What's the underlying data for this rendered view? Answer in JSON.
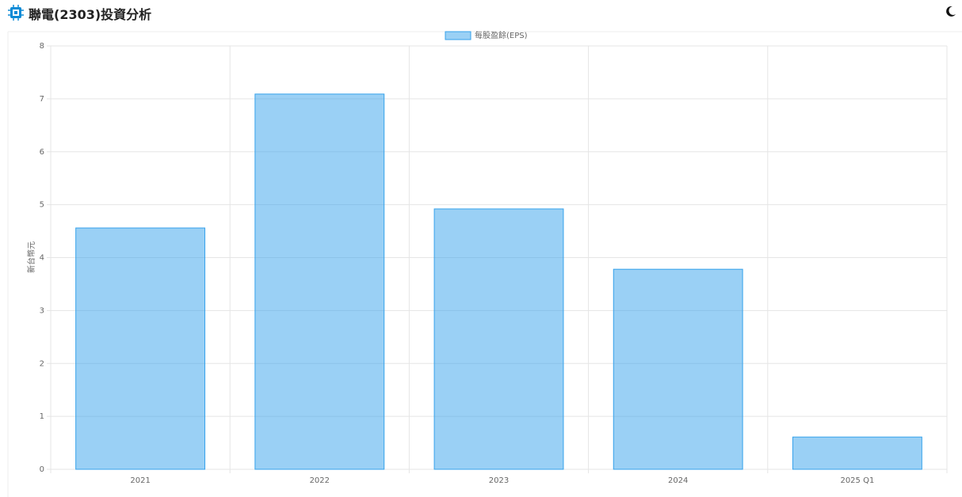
{
  "header": {
    "title": "聯電(2303)投資分析"
  },
  "chart_data": {
    "type": "bar",
    "y_label": "新台幣元",
    "categories": [
      "2021",
      "2022",
      "2023",
      "2024",
      "2025 Q1"
    ],
    "series": [
      {
        "name": "每股盈餘(EPS)",
        "color": "#36a2eb",
        "values": [
          4.56,
          7.09,
          4.92,
          3.78,
          0.61
        ]
      }
    ],
    "ylim": [
      0,
      8
    ],
    "yticks": [
      0,
      1,
      2,
      3,
      4,
      5,
      6,
      7,
      8
    ],
    "grid": true,
    "legend": "top"
  }
}
